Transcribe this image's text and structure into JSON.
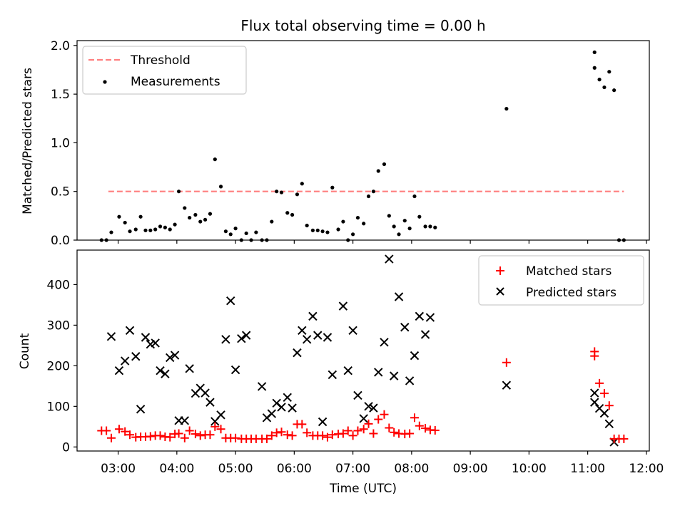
{
  "figure_title": "Flux total observing time = 0.00 h",
  "xlabel": "Time (UTC)",
  "x_ticks": [
    "03:00",
    "04:00",
    "05:00",
    "06:00",
    "07:00",
    "08:00",
    "09:00",
    "10:00",
    "11:00",
    "12:00"
  ],
  "colors": {
    "threshold": "#ff7f7f",
    "measurements": "#000000",
    "matched": "#ff0000",
    "predicted": "#000000"
  },
  "chart_data": [
    {
      "type": "scatter",
      "title": "Flux total observing time = 0.00 h",
      "xlabel": "",
      "ylabel": "Matched/Predicted stars",
      "x_unit": "UTC time",
      "xlim": [
        "02:18",
        "12:03"
      ],
      "ylim": [
        0,
        2.05
      ],
      "yticks": [
        "0.0",
        "0.5",
        "1.0",
        "1.5",
        "2.0"
      ],
      "legend_position": "top-left",
      "threshold": {
        "name": "Threshold",
        "value": 0.5,
        "x_range": [
          "02:50",
          "11:37"
        ]
      },
      "series": [
        {
          "name": "Measurements",
          "points": [
            [
              "02:43",
              0.0
            ],
            [
              "02:48",
              0.0
            ],
            [
              "02:53",
              0.08
            ],
            [
              "03:01",
              0.24
            ],
            [
              "03:07",
              0.18
            ],
            [
              "03:12",
              0.09
            ],
            [
              "03:18",
              0.11
            ],
            [
              "03:23",
              0.24
            ],
            [
              "03:28",
              0.1
            ],
            [
              "03:33",
              0.1
            ],
            [
              "03:38",
              0.11
            ],
            [
              "03:43",
              0.14
            ],
            [
              "03:48",
              0.13
            ],
            [
              "03:53",
              0.11
            ],
            [
              "03:58",
              0.16
            ],
            [
              "04:02",
              0.5
            ],
            [
              "04:08",
              0.33
            ],
            [
              "04:13",
              0.23
            ],
            [
              "04:19",
              0.26
            ],
            [
              "04:24",
              0.19
            ],
            [
              "04:29",
              0.21
            ],
            [
              "04:34",
              0.27
            ],
            [
              "04:39",
              0.83
            ],
            [
              "04:45",
              0.55
            ],
            [
              "04:50",
              0.09
            ],
            [
              "04:55",
              0.06
            ],
            [
              "05:00",
              0.12
            ],
            [
              "05:06",
              0.0
            ],
            [
              "05:11",
              0.07
            ],
            [
              "05:16",
              0.0
            ],
            [
              "05:21",
              0.08
            ],
            [
              "05:27",
              0.0
            ],
            [
              "05:32",
              0.0
            ],
            [
              "05:37",
              0.19
            ],
            [
              "05:42",
              0.5
            ],
            [
              "05:47",
              0.49
            ],
            [
              "05:53",
              0.28
            ],
            [
              "05:58",
              0.26
            ],
            [
              "06:03",
              0.47
            ],
            [
              "06:08",
              0.58
            ],
            [
              "06:13",
              0.15
            ],
            [
              "06:19",
              0.1
            ],
            [
              "06:24",
              0.1
            ],
            [
              "06:29",
              0.09
            ],
            [
              "06:34",
              0.08
            ],
            [
              "06:39",
              0.54
            ],
            [
              "06:45",
              0.11
            ],
            [
              "06:50",
              0.19
            ],
            [
              "06:55",
              0.0
            ],
            [
              "07:00",
              0.06
            ],
            [
              "07:05",
              0.23
            ],
            [
              "07:11",
              0.17
            ],
            [
              "07:16",
              0.45
            ],
            [
              "07:21",
              0.5
            ],
            [
              "07:26",
              0.71
            ],
            [
              "07:32",
              0.78
            ],
            [
              "07:37",
              0.25
            ],
            [
              "07:42",
              0.14
            ],
            [
              "07:47",
              0.06
            ],
            [
              "07:53",
              0.2
            ],
            [
              "07:58",
              0.12
            ],
            [
              "08:03",
              0.45
            ],
            [
              "08:08",
              0.24
            ],
            [
              "08:14",
              0.14
            ],
            [
              "08:19",
              0.14
            ],
            [
              "08:24",
              0.13
            ],
            [
              "09:37",
              1.35
            ],
            [
              "11:07",
              1.93
            ],
            [
              "11:07",
              1.77
            ],
            [
              "11:12",
              1.65
            ],
            [
              "11:17",
              1.57
            ],
            [
              "11:22",
              1.73
            ],
            [
              "11:27",
              1.54
            ],
            [
              "11:32",
              0.0
            ],
            [
              "11:37",
              0.0
            ]
          ]
        }
      ]
    },
    {
      "type": "scatter",
      "title": "",
      "xlabel": "Time (UTC)",
      "ylabel": "Count",
      "x_unit": "UTC time",
      "xlim": [
        "02:18",
        "12:03"
      ],
      "ylim": [
        -10,
        485
      ],
      "yticks": [
        "0",
        "100",
        "200",
        "300",
        "400"
      ],
      "legend_position": "top-right",
      "series": [
        {
          "name": "Matched stars",
          "marker": "plus",
          "points": [
            [
              "02:43",
              40
            ],
            [
              "02:48",
              40
            ],
            [
              "02:53",
              22
            ],
            [
              "03:01",
              44
            ],
            [
              "03:07",
              38
            ],
            [
              "03:12",
              30
            ],
            [
              "03:18",
              24
            ],
            [
              "03:23",
              25
            ],
            [
              "03:28",
              25
            ],
            [
              "03:33",
              26
            ],
            [
              "03:38",
              28
            ],
            [
              "03:43",
              28
            ],
            [
              "03:48",
              25
            ],
            [
              "03:53",
              24
            ],
            [
              "03:58",
              32
            ],
            [
              "04:02",
              33
            ],
            [
              "04:08",
              22
            ],
            [
              "04:13",
              40
            ],
            [
              "04:19",
              32
            ],
            [
              "04:24",
              28
            ],
            [
              "04:29",
              30
            ],
            [
              "04:34",
              30
            ],
            [
              "04:39",
              50
            ],
            [
              "04:45",
              44
            ],
            [
              "04:50",
              22
            ],
            [
              "04:55",
              22
            ],
            [
              "05:00",
              22
            ],
            [
              "05:06",
              20
            ],
            [
              "05:11",
              20
            ],
            [
              "05:16",
              20
            ],
            [
              "05:21",
              20
            ],
            [
              "05:27",
              20
            ],
            [
              "05:32",
              20
            ],
            [
              "05:37",
              28
            ],
            [
              "05:42",
              35
            ],
            [
              "05:47",
              37
            ],
            [
              "05:53",
              30
            ],
            [
              "05:58",
              28
            ],
            [
              "06:03",
              56
            ],
            [
              "06:08",
              56
            ],
            [
              "06:13",
              35
            ],
            [
              "06:19",
              28
            ],
            [
              "06:24",
              28
            ],
            [
              "06:29",
              28
            ],
            [
              "06:34",
              24
            ],
            [
              "06:39",
              30
            ],
            [
              "06:45",
              32
            ],
            [
              "06:50",
              33
            ],
            [
              "06:55",
              40
            ],
            [
              "07:00",
              28
            ],
            [
              "07:05",
              40
            ],
            [
              "07:11",
              44
            ],
            [
              "07:16",
              57
            ],
            [
              "07:21",
              33
            ],
            [
              "07:26",
              68
            ],
            [
              "07:32",
              80
            ],
            [
              "07:37",
              47
            ],
            [
              "07:42",
              36
            ],
            [
              "07:47",
              33
            ],
            [
              "07:53",
              32
            ],
            [
              "07:58",
              33
            ],
            [
              "08:03",
              72
            ],
            [
              "08:08",
              52
            ],
            [
              "08:14",
              46
            ],
            [
              "08:19",
              42
            ],
            [
              "08:24",
              41
            ],
            [
              "09:37",
              208
            ],
            [
              "11:07",
              235
            ],
            [
              "11:07",
              224
            ],
            [
              "11:12",
              157
            ],
            [
              "11:17",
              132
            ],
            [
              "11:22",
              102
            ],
            [
              "11:27",
              20
            ],
            [
              "11:32",
              20
            ],
            [
              "11:37",
              20
            ]
          ]
        },
        {
          "name": "Predicted stars",
          "marker": "x",
          "points": [
            [
              "02:53",
              272
            ],
            [
              "03:01",
              188
            ],
            [
              "03:07",
              212
            ],
            [
              "03:12",
              287
            ],
            [
              "03:18",
              223
            ],
            [
              "03:23",
              93
            ],
            [
              "03:28",
              270
            ],
            [
              "03:33",
              253
            ],
            [
              "03:38",
              256
            ],
            [
              "03:43",
              188
            ],
            [
              "03:48",
              180
            ],
            [
              "03:53",
              220
            ],
            [
              "03:58",
              226
            ],
            [
              "04:02",
              65
            ],
            [
              "04:08",
              65
            ],
            [
              "04:13",
              193
            ],
            [
              "04:19",
              132
            ],
            [
              "04:24",
              145
            ],
            [
              "04:29",
              133
            ],
            [
              "04:34",
              110
            ],
            [
              "04:39",
              63
            ],
            [
              "04:45",
              79
            ],
            [
              "04:50",
              265
            ],
            [
              "04:55",
              360
            ],
            [
              "05:00",
              190
            ],
            [
              "05:06",
              267
            ],
            [
              "05:11",
              275
            ],
            [
              "05:27",
              149
            ],
            [
              "05:32",
              72
            ],
            [
              "05:37",
              82
            ],
            [
              "05:42",
              108
            ],
            [
              "05:47",
              98
            ],
            [
              "05:53",
              122
            ],
            [
              "05:58",
              96
            ],
            [
              "06:03",
              232
            ],
            [
              "06:08",
              287
            ],
            [
              "06:13",
              265
            ],
            [
              "06:19",
              322
            ],
            [
              "06:24",
              275
            ],
            [
              "06:29",
              62
            ],
            [
              "06:34",
              270
            ],
            [
              "06:39",
              178
            ],
            [
              "06:50",
              347
            ],
            [
              "06:55",
              188
            ],
            [
              "07:00",
              287
            ],
            [
              "07:05",
              127
            ],
            [
              "07:11",
              70
            ],
            [
              "07:16",
              100
            ],
            [
              "07:21",
              96
            ],
            [
              "07:26",
              184
            ],
            [
              "07:32",
              258
            ],
            [
              "07:37",
              463
            ],
            [
              "07:42",
              175
            ],
            [
              "07:47",
              370
            ],
            [
              "07:53",
              295
            ],
            [
              "07:58",
              163
            ],
            [
              "08:03",
              225
            ],
            [
              "08:08",
              322
            ],
            [
              "08:14",
              277
            ],
            [
              "08:19",
              319
            ],
            [
              "09:37",
              152
            ],
            [
              "11:07",
              133
            ],
            [
              "11:07",
              110
            ],
            [
              "11:12",
              95
            ],
            [
              "11:17",
              83
            ],
            [
              "11:22",
              57
            ],
            [
              "11:27",
              12
            ]
          ]
        }
      ]
    }
  ]
}
